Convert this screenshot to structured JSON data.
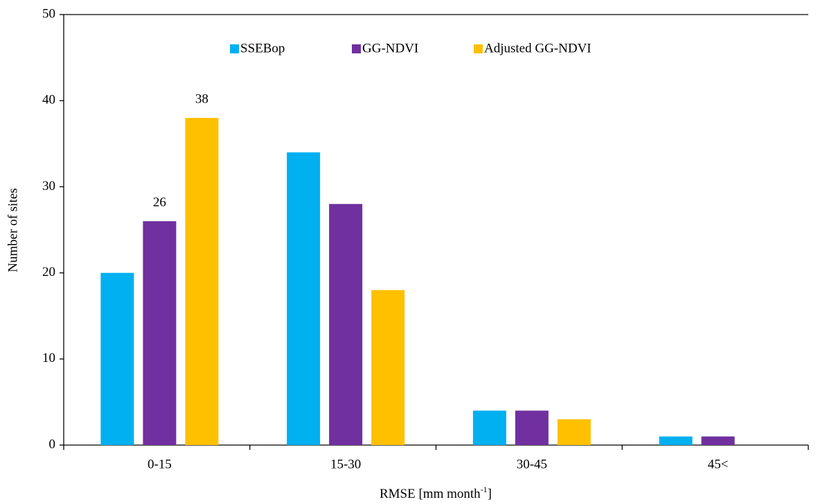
{
  "chart_data": {
    "type": "bar",
    "xlabel": {
      "text": "RMSE [mm month",
      "superscript": "-1",
      "suffix": "]"
    },
    "ylabel": "Number of sites",
    "categories": [
      "0-15",
      "15-30",
      "30-45",
      "45<"
    ],
    "series": [
      {
        "name": "SSEBop",
        "color": "#00b0f0",
        "values": [
          20,
          34,
          4,
          1
        ],
        "value_labels": [
          null,
          null,
          null,
          null
        ]
      },
      {
        "name": "GG-NDVI",
        "color": "#7030a0",
        "values": [
          26,
          28,
          4,
          1
        ],
        "value_labels": [
          "26",
          null,
          null,
          null
        ]
      },
      {
        "name": "Adjusted GG-NDVI",
        "color": "#ffc000",
        "values": [
          38,
          18,
          3,
          0
        ],
        "value_labels": [
          "38",
          null,
          null,
          null
        ]
      }
    ],
    "ylim": [
      0,
      50
    ],
    "yticks": [
      0,
      10,
      20,
      30,
      40,
      50
    ],
    "legend": "top"
  }
}
